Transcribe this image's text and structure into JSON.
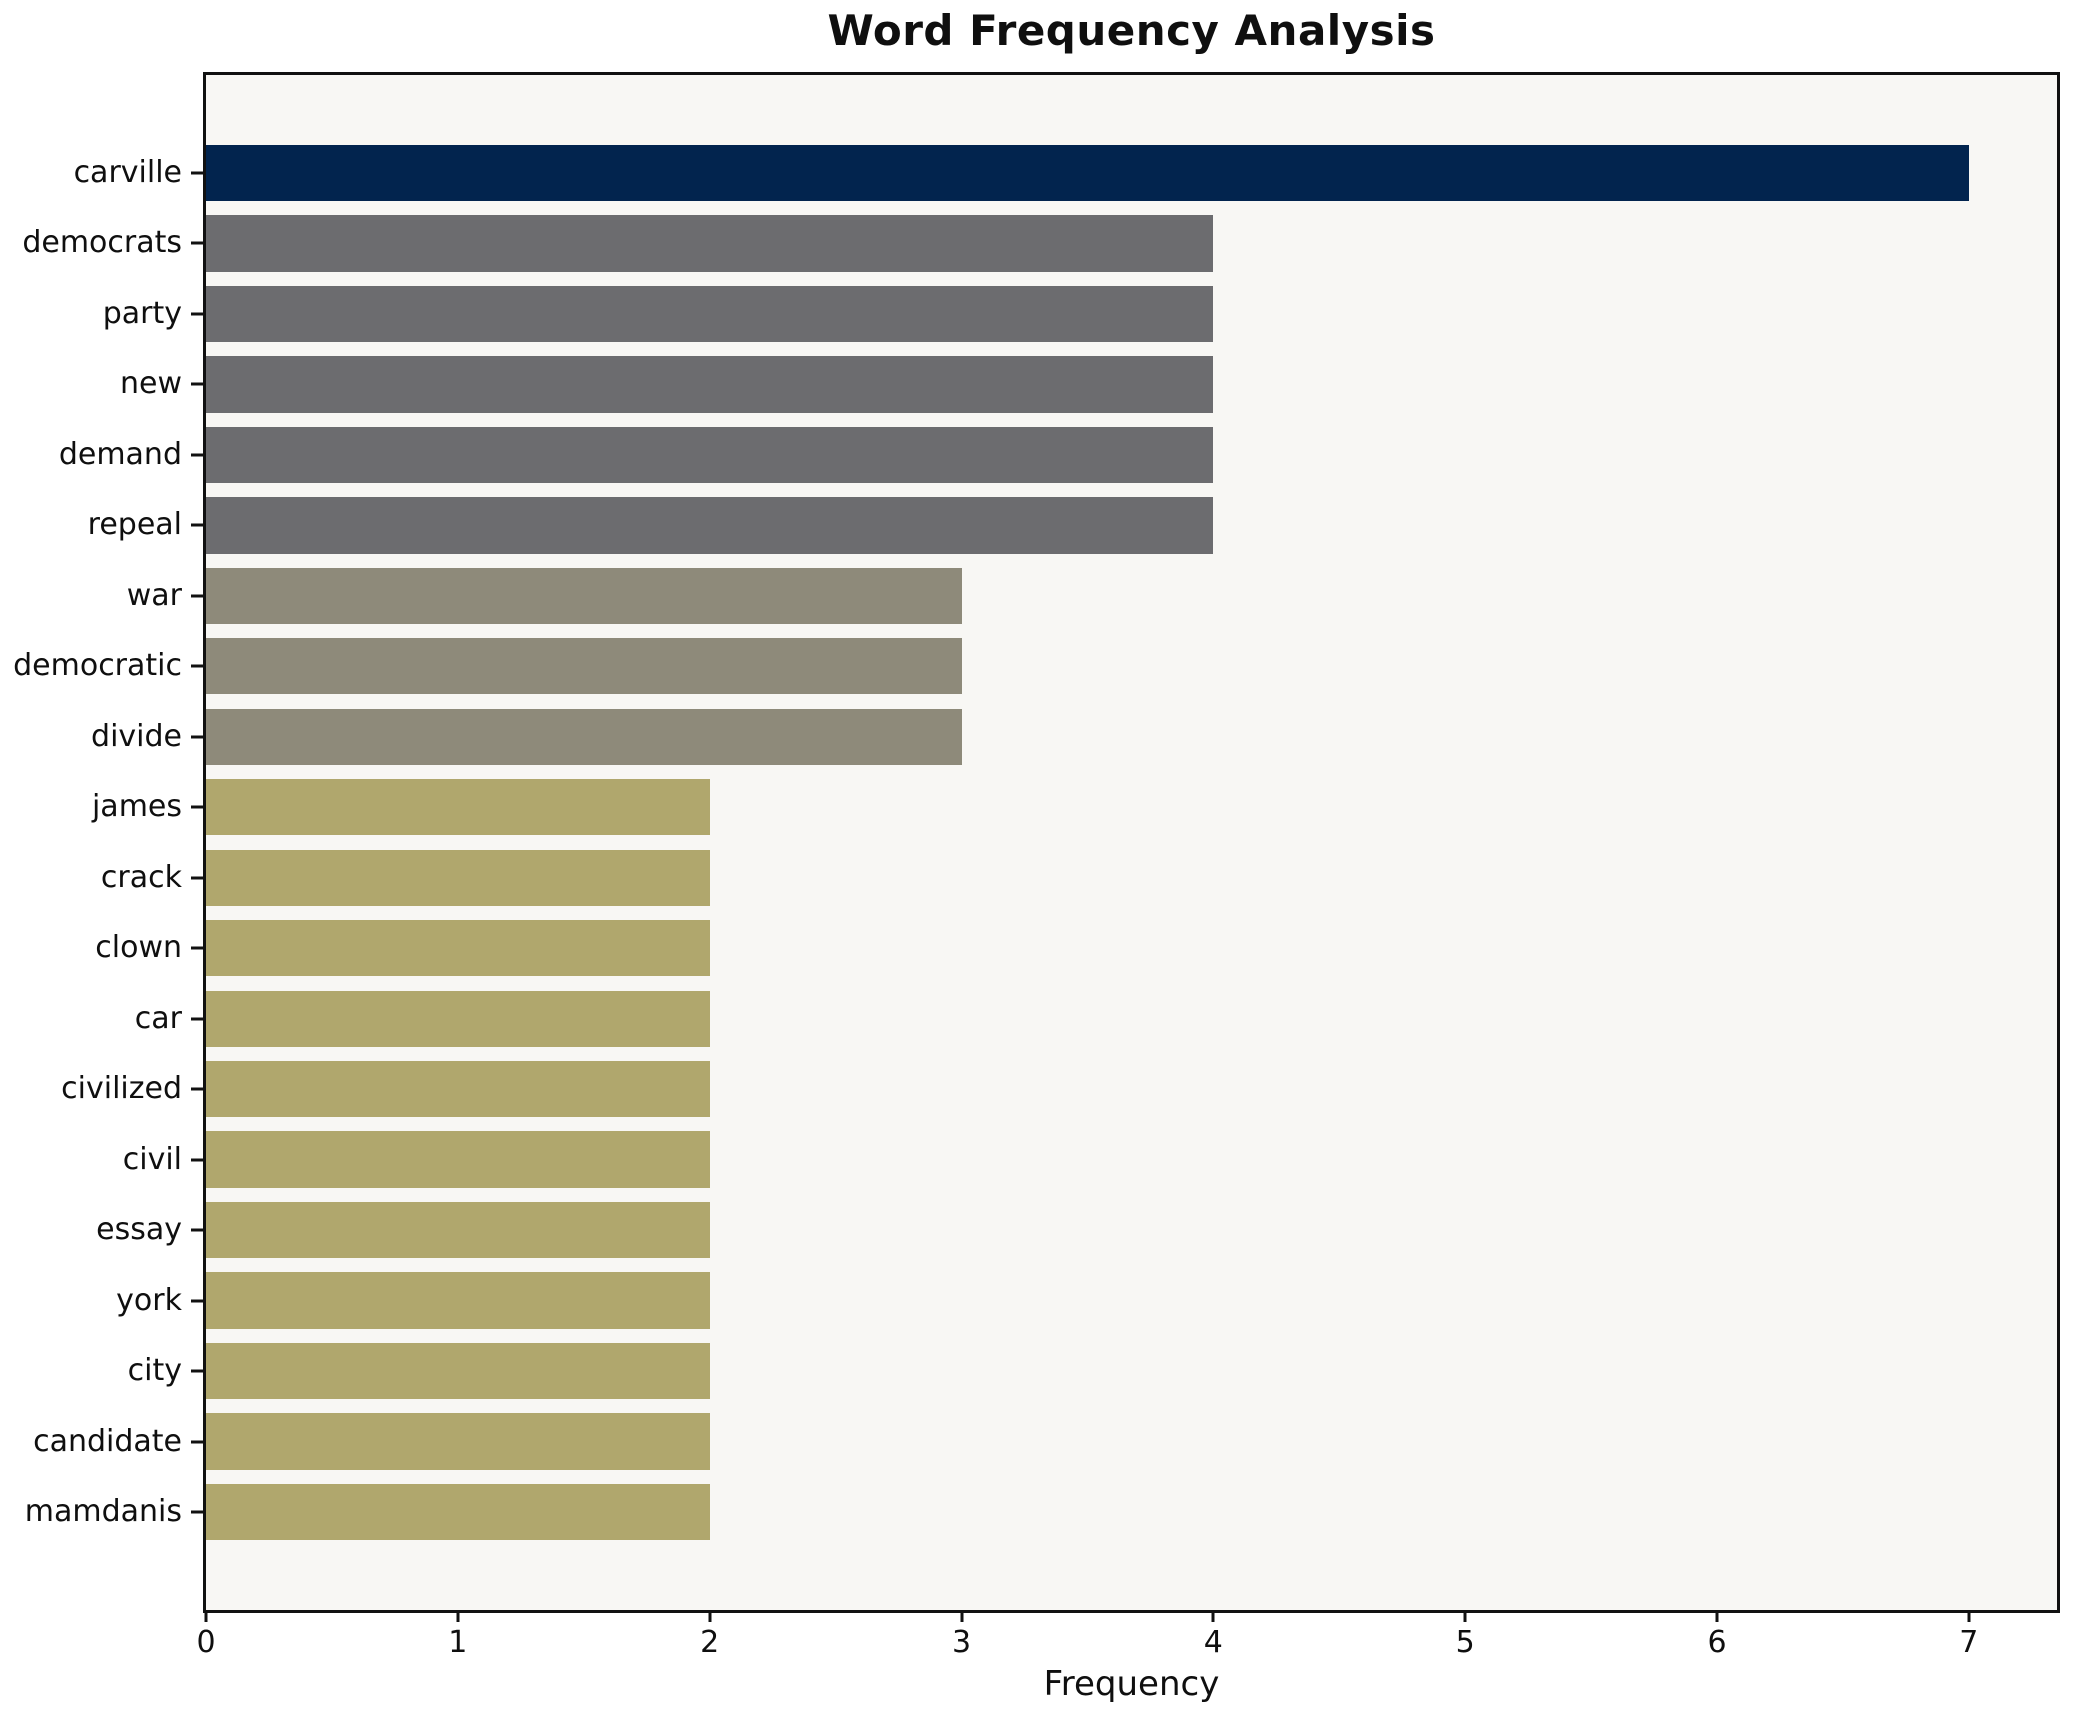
{
  "chart_data": {
    "type": "bar",
    "orientation": "horizontal",
    "title": "Word Frequency Analysis",
    "xlabel": "Frequency",
    "ylabel": "",
    "categories": [
      "carville",
      "democrats",
      "party",
      "new",
      "demand",
      "repeal",
      "war",
      "democratic",
      "divide",
      "james",
      "crack",
      "clown",
      "car",
      "civilized",
      "civil",
      "essay",
      "york",
      "city",
      "candidate",
      "mamdanis"
    ],
    "values": [
      7,
      4,
      4,
      4,
      4,
      4,
      3,
      3,
      3,
      2,
      2,
      2,
      2,
      2,
      2,
      2,
      2,
      2,
      2,
      2
    ],
    "bar_colors": [
      "#02244e",
      "#6c6c6f",
      "#6c6c6f",
      "#6c6c6f",
      "#6c6c6f",
      "#6c6c6f",
      "#8e8a7a",
      "#8e8a7a",
      "#8e8a7a",
      "#b0a76d",
      "#b0a76d",
      "#b0a76d",
      "#b0a76d",
      "#b0a76d",
      "#b0a76d",
      "#b0a76d",
      "#b0a76d",
      "#b0a76d",
      "#b0a76d",
      "#b0a76d"
    ],
    "x_ticks": [
      0,
      1,
      2,
      3,
      4,
      5,
      6,
      7
    ],
    "xlim": [
      0,
      7.35
    ],
    "grid": false,
    "legend_position": "none",
    "bar_height_fraction": 0.8,
    "plot_background": "#f8f7f4",
    "spine_color": "#111111",
    "text_color": "#0f0f0f"
  }
}
